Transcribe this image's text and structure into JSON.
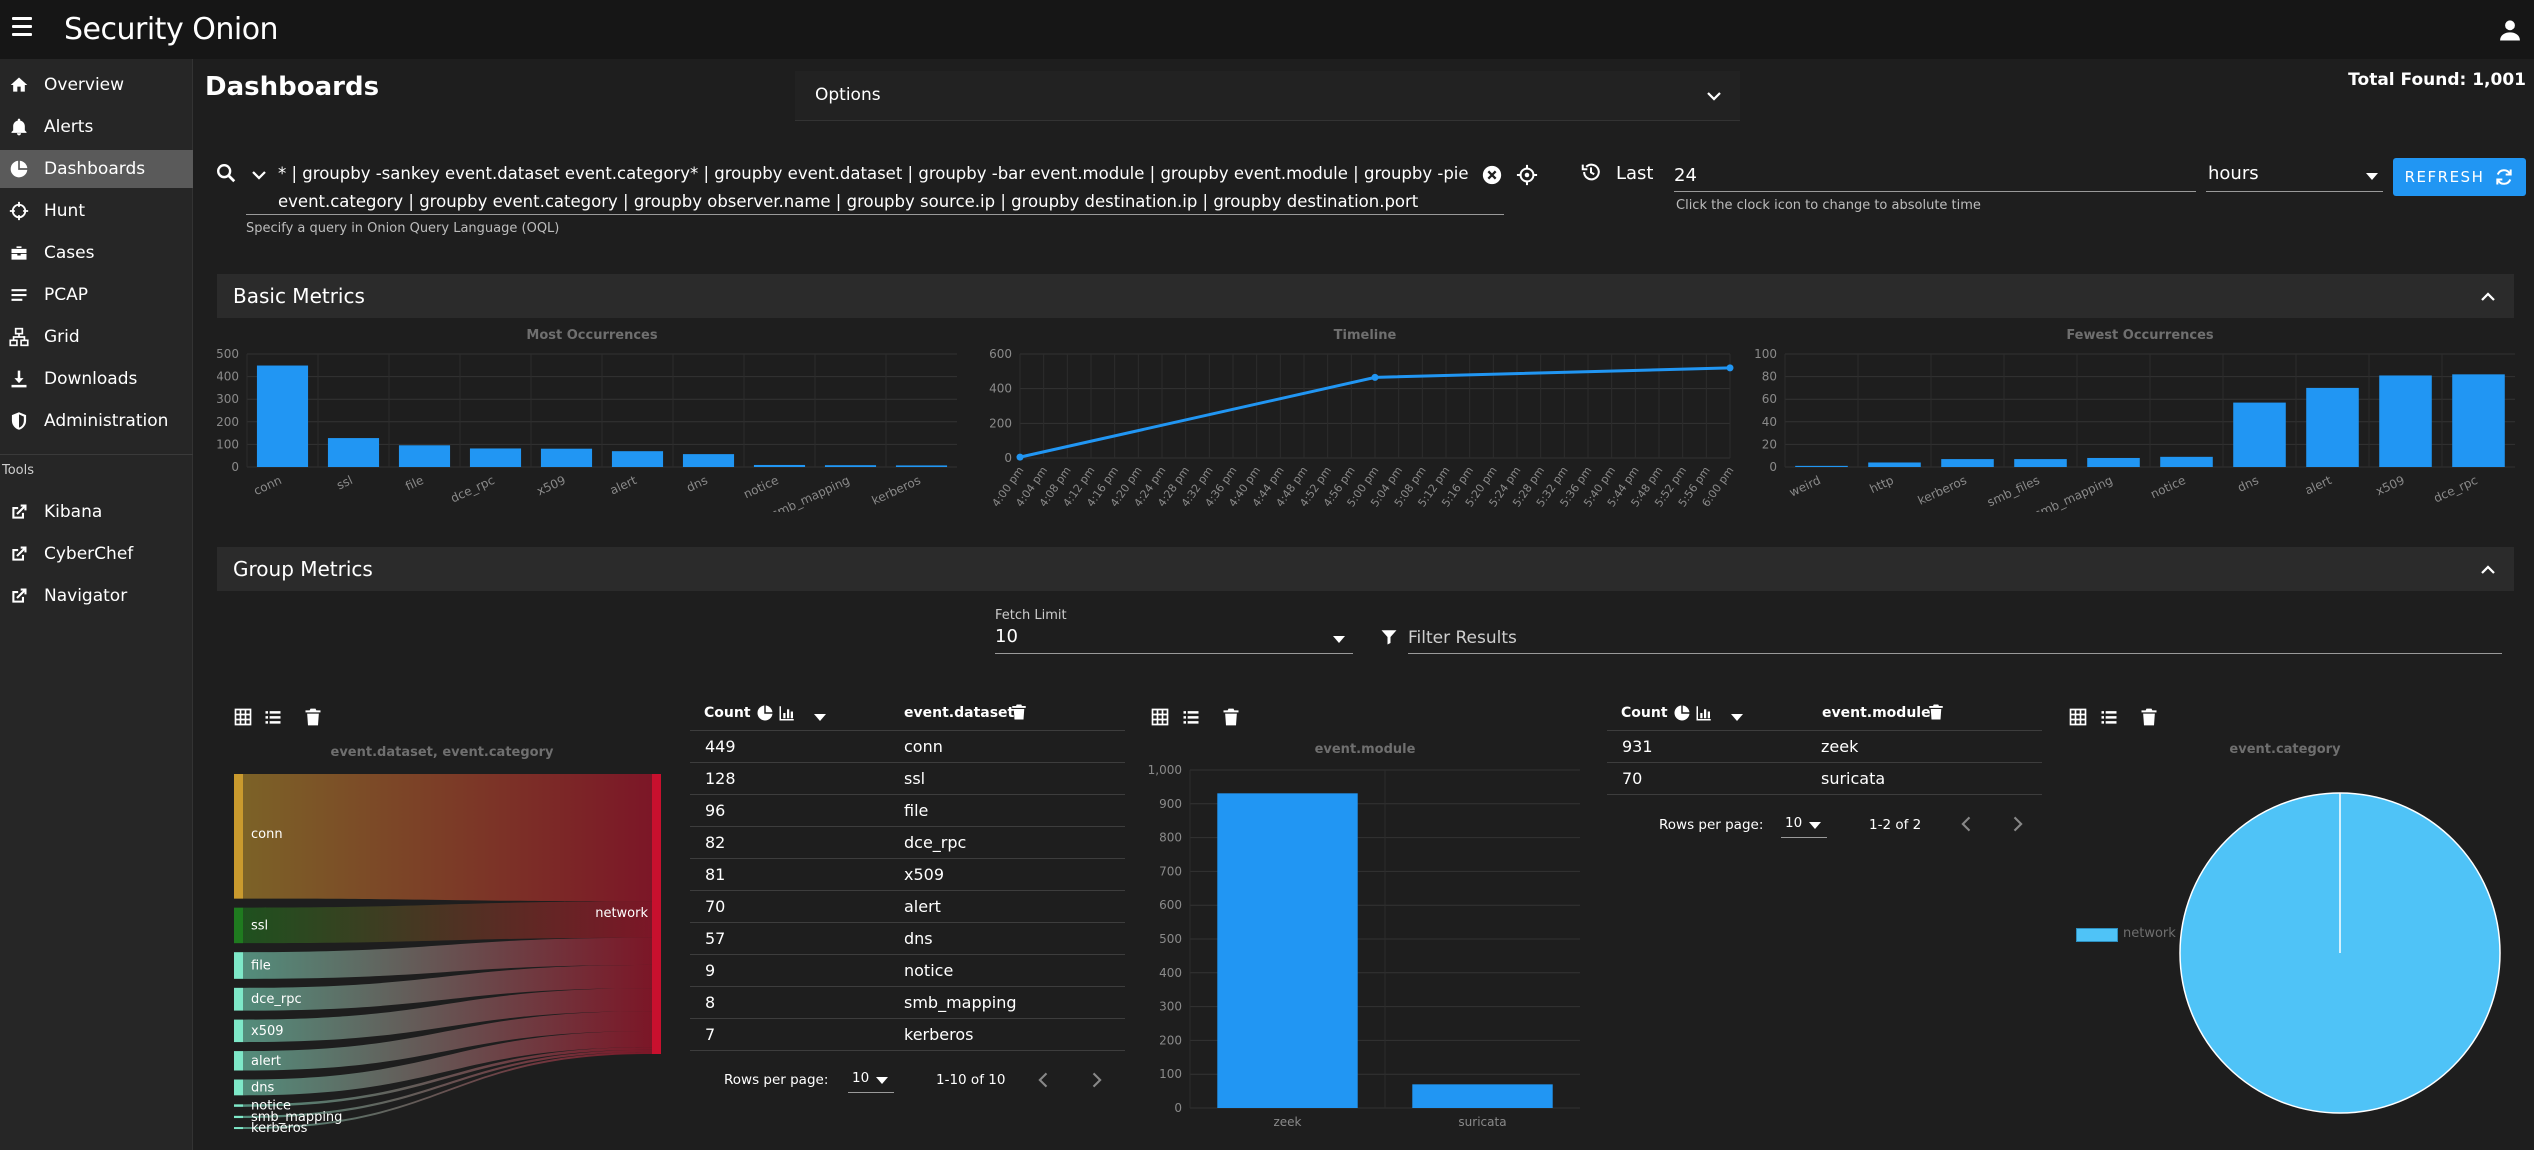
{
  "app": {
    "title": "Security Onion",
    "logo_text": "Security Onion"
  },
  "sidebar": {
    "items": [
      {
        "label": "Overview",
        "icon": "home-icon"
      },
      {
        "label": "Alerts",
        "icon": "bell-icon"
      },
      {
        "label": "Dashboards",
        "icon": "chart-pie-icon",
        "active": true
      },
      {
        "label": "Hunt",
        "icon": "crosshairs-icon"
      },
      {
        "label": "Cases",
        "icon": "briefcase-icon"
      },
      {
        "label": "PCAP",
        "icon": "list-icon"
      },
      {
        "label": "Grid",
        "icon": "grid-sitemap-icon"
      },
      {
        "label": "Downloads",
        "icon": "download-icon"
      },
      {
        "label": "Administration",
        "icon": "shield-icon"
      }
    ],
    "tools_label": "Tools",
    "tools": [
      {
        "label": "Kibana",
        "icon": "external-link-icon"
      },
      {
        "label": "CyberChef",
        "icon": "external-link-icon"
      },
      {
        "label": "Navigator",
        "icon": "external-link-icon"
      }
    ]
  },
  "header": {
    "page_title": "Dashboards",
    "options_label": "Options",
    "total_found": "Total Found: 1,001"
  },
  "query": {
    "text": "* | groupby -sankey event.dataset event.category* | groupby event.dataset | groupby -bar event.module | groupby event.module | groupby -pie event.category | groupby event.category | groupby observer.name | groupby source.ip | groupby destination.ip | groupby destination.port",
    "hint": "Specify a query in Onion Query Language (OQL)",
    "last_label": "Last",
    "last_value": "24",
    "time_hint": "Click the clock icon to change to absolute time",
    "unit": "hours",
    "refresh_label": "REFRESH"
  },
  "basic_metrics": {
    "title": "Basic Metrics",
    "charts": {
      "most": {
        "title": "Most Occurrences"
      },
      "timeline": {
        "title": "Timeline"
      },
      "fewest": {
        "title": "Fewest Occurrences"
      }
    }
  },
  "group_metrics": {
    "title": "Group Metrics",
    "fetch_limit_label": "Fetch Limit",
    "fetch_limit_value": "10",
    "filter_placeholder": "Filter Results",
    "sankey_title": "event.dataset, event.category",
    "sankey_target": "network",
    "dataset_table": {
      "headers": {
        "count": "Count",
        "field": "event.dataset"
      },
      "rows": [
        {
          "count": "449",
          "value": "conn"
        },
        {
          "count": "128",
          "value": "ssl"
        },
        {
          "count": "96",
          "value": "file"
        },
        {
          "count": "82",
          "value": "dce_rpc"
        },
        {
          "count": "81",
          "value": "x509"
        },
        {
          "count": "70",
          "value": "alert"
        },
        {
          "count": "57",
          "value": "dns"
        },
        {
          "count": "9",
          "value": "notice"
        },
        {
          "count": "8",
          "value": "smb_mapping"
        },
        {
          "count": "7",
          "value": "kerberos"
        }
      ],
      "rows_per_page_label": "Rows per page:",
      "rows_per_page": "10",
      "range": "1-10 of 10"
    },
    "module_chart_title": "event.module",
    "module_table": {
      "headers": {
        "count": "Count",
        "field": "event.module"
      },
      "rows": [
        {
          "count": "931",
          "value": "zeek"
        },
        {
          "count": "70",
          "value": "suricata"
        }
      ],
      "rows_per_page_label": "Rows per page:",
      "rows_per_page": "10",
      "range": "1-2 of 2"
    },
    "category_chart_title": "event.category",
    "category_legend": "network"
  },
  "colors": {
    "accent": "#2196f3",
    "pie": "#4fc3f7",
    "sankey_target": "#c8102e",
    "sankey_conn": "#c99a2e",
    "sankey_ssl": "#1f7a1f",
    "sankey_light": "#7ee8c8"
  },
  "chart_data": [
    {
      "id": "most",
      "type": "bar",
      "title": "Most Occurrences",
      "categories": [
        "conn",
        "ssl",
        "file",
        "dce_rpc",
        "x509",
        "alert",
        "dns",
        "notice",
        "smb_mapping",
        "kerberos"
      ],
      "values": [
        449,
        128,
        96,
        82,
        81,
        70,
        57,
        9,
        8,
        7
      ],
      "ylim": [
        0,
        500
      ],
      "yticks": [
        0,
        100,
        200,
        300,
        400,
        500
      ]
    },
    {
      "id": "timeline",
      "type": "line",
      "title": "Timeline",
      "categories": [
        "4:00 pm",
        "4:04 pm",
        "4:08 pm",
        "4:12 pm",
        "4:16 pm",
        "4:20 pm",
        "4:24 pm",
        "4:28 pm",
        "4:32 pm",
        "4:36 pm",
        "4:40 pm",
        "4:44 pm",
        "4:48 pm",
        "4:52 pm",
        "4:56 pm",
        "5:00 pm",
        "5:04 pm",
        "5:08 pm",
        "5:12 pm",
        "5:16 pm",
        "5:20 pm",
        "5:24 pm",
        "5:28 pm",
        "5:32 pm",
        "5:36 pm",
        "5:40 pm",
        "5:44 pm",
        "5:48 pm",
        "5:52 pm",
        "5:56 pm",
        "6:00 pm"
      ],
      "points": [
        {
          "x": "4:00 pm",
          "y": 5
        },
        {
          "x": "5:00 pm",
          "y": 465
        },
        {
          "x": "6:00 pm",
          "y": 520
        }
      ],
      "ylim": [
        0,
        600
      ],
      "yticks": [
        0,
        200,
        400,
        600
      ]
    },
    {
      "id": "fewest",
      "type": "bar",
      "title": "Fewest Occurrences",
      "categories": [
        "weird",
        "http",
        "kerberos",
        "smb_files",
        "smb_mapping",
        "notice",
        "dns",
        "alert",
        "x509",
        "dce_rpc"
      ],
      "values": [
        1,
        4,
        7,
        7,
        8,
        9,
        57,
        70,
        81,
        82
      ],
      "ylim": [
        0,
        100
      ],
      "yticks": [
        0,
        20,
        40,
        60,
        80,
        100
      ]
    },
    {
      "id": "module",
      "type": "bar",
      "title": "event.module",
      "categories": [
        "zeek",
        "suricata"
      ],
      "values": [
        931,
        70
      ],
      "ylim": [
        0,
        1000
      ],
      "yticks": [
        0,
        100,
        200,
        300,
        400,
        500,
        600,
        700,
        800,
        900,
        1000
      ],
      "ytick_labels": [
        "0",
        "100",
        "200",
        "300",
        "400",
        "500",
        "600",
        "700",
        "800",
        "900",
        "1,000"
      ]
    },
    {
      "id": "category",
      "type": "pie",
      "title": "event.category",
      "labels": [
        "network"
      ],
      "values": [
        1001
      ]
    },
    {
      "id": "sankey",
      "type": "sankey",
      "title": "event.dataset, event.category",
      "sources": [
        "conn",
        "ssl",
        "file",
        "dce_rpc",
        "x509",
        "alert",
        "dns",
        "notice",
        "smb_mapping",
        "kerberos"
      ],
      "values": [
        449,
        128,
        96,
        82,
        81,
        70,
        57,
        9,
        8,
        7
      ],
      "target": "network"
    }
  ]
}
